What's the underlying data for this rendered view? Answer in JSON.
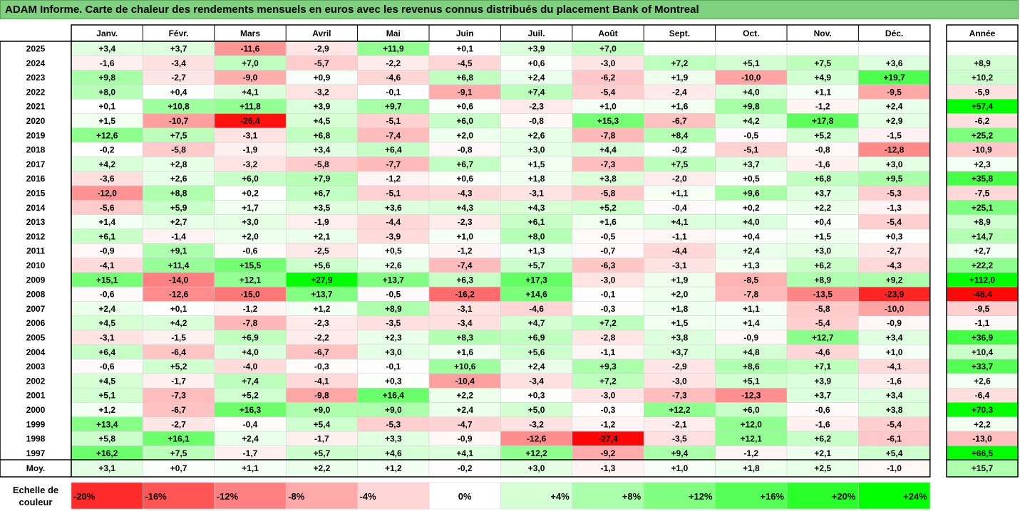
{
  "title": "ADAM Informe. Carte de chaleur des rendements mensuels en euros avec les revenus connus distribués du placement Bank of Montreal",
  "chart_data": {
    "type": "heatmap",
    "months": [
      "Janv.",
      "Févr.",
      "Mars",
      "Avril",
      "Mai",
      "Juin",
      "Juil.",
      "Août",
      "Sept.",
      "Oct.",
      "Nov.",
      "Déc."
    ],
    "annual_header": "Année",
    "avg_label": "Moy.",
    "rows": [
      {
        "year": "2025",
        "values": [
          "+3,4",
          "+3,7",
          "-11,6",
          "-2,9",
          "+11,9",
          "+0,1",
          "+3,9",
          "+7,0",
          "",
          "",
          "",
          ""
        ],
        "annual": ""
      },
      {
        "year": "2024",
        "values": [
          "-1,6",
          "-3,4",
          "+7,0",
          "-5,7",
          "-2,2",
          "-4,5",
          "+0,6",
          "-3,0",
          "+7,2",
          "+5,1",
          "+7,5",
          "+3,6"
        ],
        "annual": "+8,9"
      },
      {
        "year": "2023",
        "values": [
          "+9,8",
          "-2,7",
          "-9,0",
          "+0,9",
          "-4,6",
          "+6,8",
          "+2,4",
          "-6,2",
          "+1,9",
          "-10,0",
          "+4,9",
          "+19,7"
        ],
        "annual": "+10,2"
      },
      {
        "year": "2022",
        "values": [
          "+8,0",
          "+0,4",
          "+4,1",
          "-3,2",
          "-0,1",
          "-9,1",
          "+7,4",
          "-5,4",
          "-2,4",
          "+4,0",
          "+1,1",
          "-9,5"
        ],
        "annual": "-5,9"
      },
      {
        "year": "2021",
        "values": [
          "+0,1",
          "+10,8",
          "+11,8",
          "+3,9",
          "+9,7",
          "+0,6",
          "-2,3",
          "+1,0",
          "+1,6",
          "+9,8",
          "-1,2",
          "+2,4"
        ],
        "annual": "+57,4"
      },
      {
        "year": "2020",
        "values": [
          "+1,5",
          "-10,7",
          "-26,4",
          "+4,5",
          "-5,1",
          "+6,0",
          "-0,8",
          "+15,3",
          "-6,7",
          "+4,2",
          "+17,8",
          "+2,9"
        ],
        "annual": "-6,2"
      },
      {
        "year": "2019",
        "values": [
          "+12,6",
          "+7,5",
          "-3,1",
          "+6,8",
          "-7,4",
          "+2,0",
          "+2,6",
          "-7,8",
          "+8,4",
          "-0,5",
          "+5,2",
          "-1,5"
        ],
        "annual": "+25,2"
      },
      {
        "year": "2018",
        "values": [
          "-0,2",
          "-5,8",
          "-1,9",
          "+3,4",
          "+6,4",
          "-0,8",
          "+3,0",
          "+4,4",
          "-0,2",
          "-5,1",
          "-0,8",
          "-12,8"
        ],
        "annual": "-10,9"
      },
      {
        "year": "2017",
        "values": [
          "+4,2",
          "+2,8",
          "-3,2",
          "-5,8",
          "-7,7",
          "+6,7",
          "+1,5",
          "-7,3",
          "+7,5",
          "+3,7",
          "-1,6",
          "+3,0"
        ],
        "annual": "+2,3"
      },
      {
        "year": "2016",
        "values": [
          "-3,6",
          "+2,6",
          "+6,0",
          "+7,9",
          "-1,2",
          "+0,6",
          "+1,8",
          "+3,8",
          "-2,0",
          "+0,5",
          "+6,8",
          "+9,5"
        ],
        "annual": "+35,8"
      },
      {
        "year": "2015",
        "values": [
          "-12,0",
          "+8,8",
          "+0,2",
          "+6,7",
          "-5,1",
          "-4,3",
          "-3,1",
          "-5,8",
          "+1,1",
          "+9,6",
          "+3,7",
          "-5,3"
        ],
        "annual": "-7,5"
      },
      {
        "year": "2014",
        "values": [
          "-5,6",
          "+5,9",
          "+1,7",
          "+3,5",
          "+3,6",
          "+4,3",
          "+4,3",
          "+5,2",
          "-0,4",
          "+0,2",
          "+2,2",
          "-1,3"
        ],
        "annual": "+25,1"
      },
      {
        "year": "2013",
        "values": [
          "+1,4",
          "+2,7",
          "+3,0",
          "-1,9",
          "-4,4",
          "-2,3",
          "+6,1",
          "+1,6",
          "+4,1",
          "+4,0",
          "+0,4",
          "-5,4"
        ],
        "annual": "+8,9"
      },
      {
        "year": "2012",
        "values": [
          "+6,1",
          "-1,4",
          "+2,0",
          "+2,1",
          "-3,9",
          "+1,0",
          "+8,0",
          "-0,5",
          "-1,1",
          "+0,4",
          "+1,5",
          "+0,3"
        ],
        "annual": "+14,7"
      },
      {
        "year": "2011",
        "values": [
          "-0,9",
          "+9,1",
          "-0,6",
          "-2,5",
          "+0,5",
          "-1,2",
          "+1,3",
          "-0,7",
          "-4,4",
          "+2,4",
          "+3,0",
          "-2,7"
        ],
        "annual": "+2,7"
      },
      {
        "year": "2010",
        "values": [
          "-4,1",
          "+11,4",
          "+15,5",
          "+5,6",
          "+2,6",
          "-7,4",
          "+5,7",
          "-6,3",
          "-3,1",
          "+1,3",
          "+6,2",
          "-4,3"
        ],
        "annual": "+22,2"
      },
      {
        "year": "2009",
        "values": [
          "+15,1",
          "-14,0",
          "+12,1",
          "+27,9",
          "+13,7",
          "+6,3",
          "+17,3",
          "-3,0",
          "+1,9",
          "-8,5",
          "+8,9",
          "+9,2"
        ],
        "annual": "+112,0"
      },
      {
        "year": "2008",
        "values": [
          "-0,6",
          "-12,6",
          "-15,0",
          "+13,7",
          "-0,5",
          "-16,2",
          "+14,6",
          "-0,1",
          "+2,0",
          "-7,8",
          "-13,5",
          "-23,9"
        ],
        "annual": "-48,4"
      },
      {
        "year": "2007",
        "values": [
          "+2,4",
          "+0,1",
          "-1,2",
          "+1,2",
          "+8,9",
          "-3,1",
          "-4,6",
          "-0,3",
          "+1,8",
          "+1,1",
          "-5,8",
          "-10,0"
        ],
        "annual": "-9,5"
      },
      {
        "year": "2006",
        "values": [
          "+4,5",
          "+4,2",
          "-7,8",
          "-2,3",
          "-3,5",
          "-3,4",
          "+4,7",
          "+7,2",
          "+1,5",
          "+1,4",
          "-5,4",
          "-0,9"
        ],
        "annual": "-1,1"
      },
      {
        "year": "2005",
        "values": [
          "-3,1",
          "-1,5",
          "+6,9",
          "-2,2",
          "+2,3",
          "+8,3",
          "+6,9",
          "-2,8",
          "+3,8",
          "-0,9",
          "+12,7",
          "+3,4"
        ],
        "annual": "+36,9"
      },
      {
        "year": "2004",
        "values": [
          "+6,4",
          "-6,4",
          "+4,0",
          "-6,7",
          "+3,0",
          "+1,6",
          "+5,6",
          "-1,1",
          "+3,7",
          "+4,8",
          "-4,6",
          "+1,0"
        ],
        "annual": "+10,4"
      },
      {
        "year": "2003",
        "values": [
          "-0,6",
          "+5,2",
          "-4,0",
          "-0,3",
          "-0,1",
          "+10,6",
          "+2,4",
          "+9,3",
          "-2,9",
          "+8,6",
          "+7,1",
          "-4,1"
        ],
        "annual": "+33,7"
      },
      {
        "year": "2002",
        "values": [
          "+4,5",
          "-1,7",
          "+7,4",
          "-4,1",
          "+0,3",
          "-10,4",
          "-3,4",
          "+7,2",
          "-3,0",
          "+5,1",
          "+3,9",
          "-1,6"
        ],
        "annual": "+2,6"
      },
      {
        "year": "2001",
        "values": [
          "+5,1",
          "-7,3",
          "+5,2",
          "-9,8",
          "+16,4",
          "+2,2",
          "+0,3",
          "-3,0",
          "-7,3",
          "-12,3",
          "+3,7",
          "+3,4"
        ],
        "annual": "-6,4"
      },
      {
        "year": "2000",
        "values": [
          "+1,2",
          "-6,7",
          "+16,3",
          "+9,0",
          "+9,0",
          "+2,4",
          "+5,0",
          "-0,3",
          "+12,2",
          "+6,0",
          "-0,6",
          "+3,8"
        ],
        "annual": "+70,3"
      },
      {
        "year": "1999",
        "values": [
          "+13,4",
          "-2,7",
          "-0,4",
          "+5,4",
          "-5,3",
          "-4,7",
          "-3,2",
          "-1,2",
          "-2,1",
          "+12,0",
          "-1,6",
          "-5,4"
        ],
        "annual": "+2,2"
      },
      {
        "year": "1998",
        "values": [
          "+5,8",
          "+16,1",
          "+2,4",
          "-1,7",
          "+3,3",
          "-0,9",
          "-12,6",
          "-27,4",
          "-3,5",
          "+12,1",
          "+6,2",
          "-6,1"
        ],
        "annual": "-13,0"
      },
      {
        "year": "1997",
        "values": [
          "+16,2",
          "+7,5",
          "-1,7",
          "+5,7",
          "+4,6",
          "+4,1",
          "+12,2",
          "-9,2",
          "+9,4",
          "-1,2",
          "+2,1",
          "+5,4"
        ],
        "annual": "+66,5"
      }
    ],
    "average": {
      "values": [
        "+3,1",
        "+0,7",
        "+1,1",
        "+2,2",
        "+1,2",
        "-0,2",
        "+3,0",
        "-1,3",
        "+1,0",
        "+1,8",
        "+2,5",
        "-1,0"
      ],
      "annual": "+15,7"
    },
    "scale": {
      "label_line1": "Echelle de",
      "label_line2": "couleur",
      "steps": [
        {
          "label": "-20%",
          "value": -20
        },
        {
          "label": "-16%",
          "value": -16
        },
        {
          "label": "-12%",
          "value": -12
        },
        {
          "label": "-8%",
          "value": -8
        },
        {
          "label": "-4%",
          "value": -4
        },
        {
          "label": "0%",
          "value": 0
        },
        {
          "label": "+4%",
          "value": 4
        },
        {
          "label": "+8%",
          "value": 8
        },
        {
          "label": "+12%",
          "value": 12
        },
        {
          "label": "+16%",
          "value": 16
        },
        {
          "label": "+20%",
          "value": 20
        },
        {
          "label": "+24%",
          "value": 24
        }
      ]
    },
    "colors": {
      "negative": "#ff0000",
      "neutral": "#ffffff",
      "positive": "#00ff00"
    }
  }
}
